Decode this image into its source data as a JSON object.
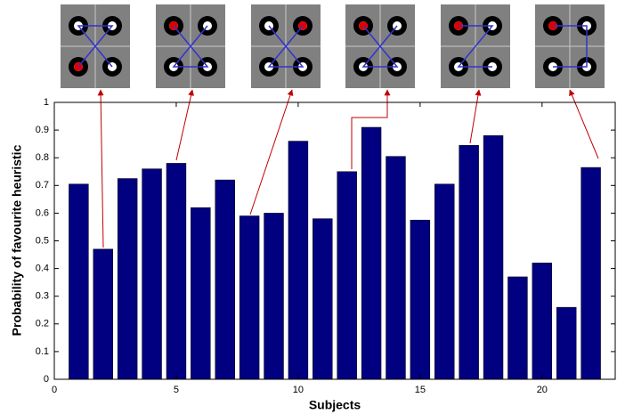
{
  "chart_data": {
    "type": "bar",
    "xlabel": "Subjects",
    "ylabel": "Probability of favourite heuristic",
    "x": [
      1,
      2,
      3,
      4,
      5,
      6,
      7,
      8,
      9,
      10,
      11,
      12,
      13,
      14,
      15,
      16,
      17,
      18,
      19,
      20,
      21,
      22
    ],
    "values": [
      0.705,
      0.47,
      0.725,
      0.76,
      0.78,
      0.62,
      0.72,
      0.59,
      0.6,
      0.86,
      0.58,
      0.75,
      0.91,
      0.805,
      0.575,
      0.705,
      0.845,
      0.88,
      0.37,
      0.42,
      0.26,
      0.765
    ],
    "color": "#000080",
    "xlim": [
      0,
      23
    ],
    "ylim": [
      0,
      1
    ],
    "xticks": [
      0,
      5,
      10,
      15,
      20
    ],
    "yticks": [
      0,
      0.1,
      0.2,
      0.3,
      0.4,
      0.5,
      0.6,
      0.7,
      0.8,
      0.9,
      1
    ]
  }
}
